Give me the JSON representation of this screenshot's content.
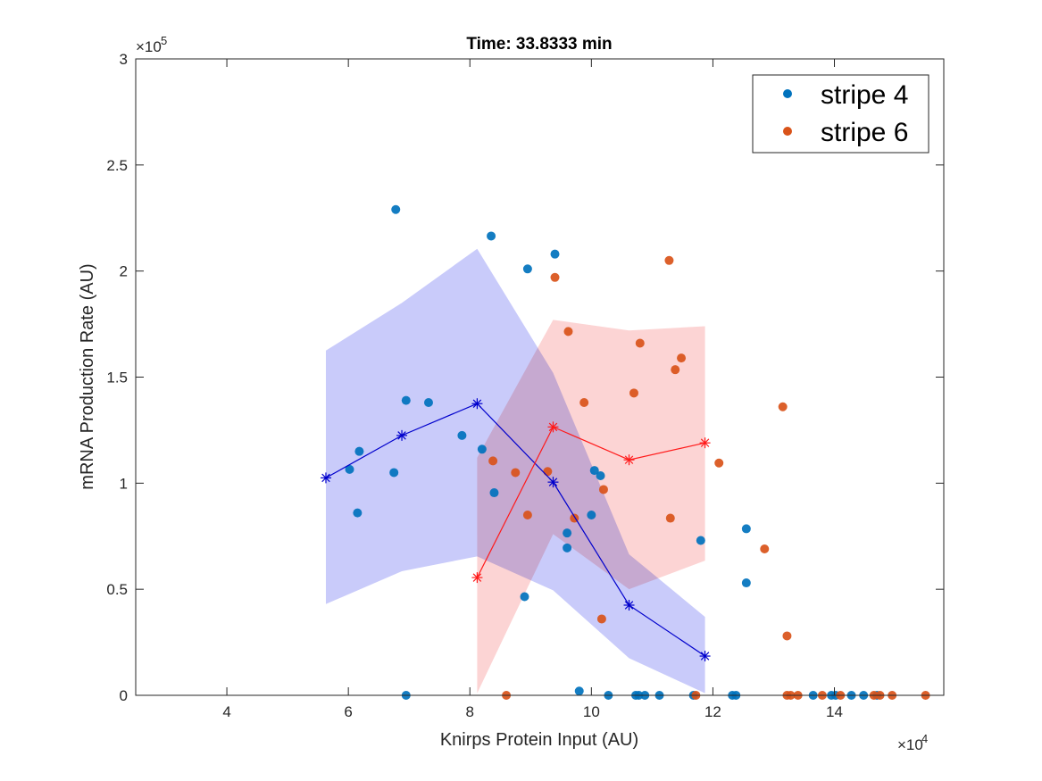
{
  "chart_data": {
    "type": "scatter",
    "title": "Time: 33.8333 min",
    "xlabel": "Knirps Protein Input (AU)",
    "ylabel": "mRNA Production Rate (AU)",
    "x_scale_label": "×10",
    "x_scale_exp": "4",
    "y_scale_label": "×10",
    "y_scale_exp": "5",
    "xlim": [
      2.5,
      15.8
    ],
    "ylim": [
      0,
      3
    ],
    "xticks": [
      4,
      6,
      8,
      10,
      12,
      14
    ],
    "yticks": [
      0,
      0.5,
      1,
      1.5,
      2,
      2.5,
      3
    ],
    "xtick_labels": [
      "4",
      "6",
      "8",
      "10",
      "12",
      "14"
    ],
    "ytick_labels": [
      "0",
      "0.5",
      "1",
      "1.5",
      "2",
      "2.5",
      "3"
    ],
    "legend_position": "top-right",
    "series": [
      {
        "name": "stripe 4",
        "color": "#0072BD",
        "points": [
          [
            6.78,
            2.29
          ],
          [
            8.35,
            2.165
          ],
          [
            9.4,
            2.08
          ],
          [
            8.95,
            2.01
          ],
          [
            6.95,
            1.39
          ],
          [
            7.32,
            1.38
          ],
          [
            7.87,
            1.225
          ],
          [
            8.2,
            1.16
          ],
          [
            6.18,
            1.15
          ],
          [
            6.02,
            1.065
          ],
          [
            6.75,
            1.05
          ],
          [
            8.4,
            0.955
          ],
          [
            10.05,
            1.06
          ],
          [
            10.15,
            1.035
          ],
          [
            10.0,
            0.85
          ],
          [
            6.15,
            0.86
          ],
          [
            9.6,
            0.765
          ],
          [
            9.6,
            0.695
          ],
          [
            8.9,
            0.465
          ],
          [
            11.8,
            0.73
          ],
          [
            12.55,
            0.785
          ],
          [
            12.55,
            0.53
          ],
          [
            9.8,
            0.02
          ],
          [
            6.95,
            0
          ],
          [
            10.28,
            0
          ],
          [
            10.73,
            0
          ],
          [
            10.78,
            0
          ],
          [
            10.88,
            0
          ],
          [
            11.12,
            0
          ],
          [
            11.68,
            0
          ],
          [
            12.32,
            0
          ],
          [
            12.38,
            0
          ],
          [
            13.65,
            0
          ],
          [
            13.95,
            0
          ],
          [
            14.02,
            0
          ],
          [
            14.28,
            0
          ],
          [
            14.48,
            0
          ],
          [
            14.7,
            0
          ]
        ]
      },
      {
        "name": "stripe 6",
        "color": "#D95319",
        "points": [
          [
            9.4,
            1.97
          ],
          [
            11.28,
            2.05
          ],
          [
            9.62,
            1.715
          ],
          [
            10.8,
            1.66
          ],
          [
            11.48,
            1.59
          ],
          [
            11.38,
            1.535
          ],
          [
            10.7,
            1.425
          ],
          [
            9.88,
            1.38
          ],
          [
            13.15,
            1.36
          ],
          [
            8.38,
            1.105
          ],
          [
            8.75,
            1.05
          ],
          [
            9.28,
            1.055
          ],
          [
            12.1,
            1.095
          ],
          [
            10.2,
            0.97
          ],
          [
            8.95,
            0.85
          ],
          [
            9.72,
            0.835
          ],
          [
            11.3,
            0.835
          ],
          [
            12.85,
            0.69
          ],
          [
            10.17,
            0.36
          ],
          [
            13.22,
            0.28
          ],
          [
            8.6,
            0
          ],
          [
            11.72,
            0
          ],
          [
            13.22,
            0
          ],
          [
            13.28,
            0
          ],
          [
            13.4,
            0
          ],
          [
            13.8,
            0
          ],
          [
            14.1,
            0
          ],
          [
            14.65,
            0
          ],
          [
            14.75,
            0
          ],
          [
            14.95,
            0
          ],
          [
            15.5,
            0
          ]
        ]
      }
    ],
    "binned": [
      {
        "color": "#0000CC",
        "fill": "#C9CBFA",
        "x": [
          5.63,
          6.88,
          8.12,
          9.37,
          10.62,
          11.87
        ],
        "mean": [
          1.025,
          1.225,
          1.375,
          1.005,
          0.425,
          0.185
        ],
        "upper": [
          1.625,
          1.85,
          2.105,
          1.52,
          0.665,
          0.37
        ],
        "lower": [
          0.43,
          0.585,
          0.655,
          0.495,
          0.175,
          0.01
        ]
      },
      {
        "color": "#FF1A1A",
        "fill": "#FBCCCC",
        "x": [
          8.12,
          9.37,
          10.62,
          11.87
        ],
        "mean": [
          0.555,
          1.265,
          1.11,
          1.19
        ],
        "upper": [
          1.12,
          1.77,
          1.72,
          1.74
        ],
        "lower": [
          0.01,
          0.76,
          0.5,
          0.635
        ]
      }
    ]
  }
}
